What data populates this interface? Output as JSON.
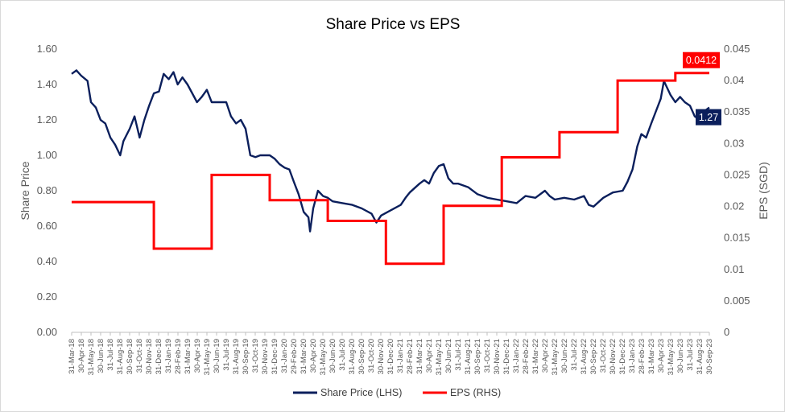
{
  "chart_data": {
    "type": "line",
    "title": "Share Price vs EPS",
    "y_left_label": "Share Price",
    "y_right_label": "EPS (SGD)",
    "y_left_ticks": [
      "0.00",
      "0.20",
      "0.40",
      "0.60",
      "0.80",
      "1.00",
      "1.20",
      "1.40",
      "1.60"
    ],
    "y_right_ticks": [
      "0",
      "0.005",
      "0.01",
      "0.015",
      "0.02",
      "0.025",
      "0.03",
      "0.035",
      "0.04",
      "0.045"
    ],
    "y_left_range": [
      0,
      1.6
    ],
    "y_right_range": [
      0,
      0.045
    ],
    "x_range": [
      "2018-03-31",
      "2023-09-30"
    ],
    "x_ticks": [
      "31-Mar-18",
      "30-Apr-18",
      "31-May-18",
      "30-Jun-18",
      "31-Jul-18",
      "31-Aug-18",
      "30-Sep-18",
      "31-Oct-18",
      "30-Nov-18",
      "31-Dec-18",
      "31-Jan-19",
      "28-Feb-19",
      "31-Mar-19",
      "30-Apr-19",
      "31-May-19",
      "30-Jun-19",
      "31-Jul-19",
      "31-Aug-19",
      "30-Sep-19",
      "31-Oct-19",
      "30-Nov-19",
      "31-Dec-19",
      "31-Jan-20",
      "29-Feb-20",
      "31-Mar-20",
      "30-Apr-20",
      "31-May-20",
      "30-Jun-20",
      "31-Jul-20",
      "31-Aug-20",
      "30-Sep-20",
      "31-Oct-20",
      "30-Nov-20",
      "31-Dec-20",
      "31-Jan-21",
      "28-Feb-21",
      "31-Mar-21",
      "30-Apr-21",
      "31-May-21",
      "30-Jun-21",
      "31-Jul-21",
      "31-Aug-21",
      "30-Sep-21",
      "31-Oct-21",
      "30-Nov-21",
      "31-Dec-21",
      "31-Jan-22",
      "28-Feb-22",
      "31-Mar-22",
      "30-Apr-22",
      "31-May-22",
      "30-Jun-22",
      "31-Jul-22",
      "31-Aug-22",
      "30-Sep-22",
      "31-Oct-22",
      "30-Nov-22",
      "31-Dec-22",
      "31-Jan-23",
      "28-Feb-23",
      "31-Mar-23",
      "30-Apr-23",
      "31-May-23",
      "30-Jun-23",
      "31-Jul-23",
      "31-Aug-23",
      "30-Sep-23"
    ],
    "series": [
      {
        "name": "Share Price (LHS)",
        "axis": "left",
        "color": "#0b1f5c",
        "points": [
          [
            "2018-03-31",
            1.46
          ],
          [
            "2018-04-15",
            1.48
          ],
          [
            "2018-04-30",
            1.45
          ],
          [
            "2018-05-20",
            1.42
          ],
          [
            "2018-05-31",
            1.3
          ],
          [
            "2018-06-15",
            1.27
          ],
          [
            "2018-06-30",
            1.2
          ],
          [
            "2018-07-15",
            1.18
          ],
          [
            "2018-07-31",
            1.1
          ],
          [
            "2018-08-15",
            1.06
          ],
          [
            "2018-08-31",
            1.0
          ],
          [
            "2018-09-10",
            1.08
          ],
          [
            "2018-09-30",
            1.15
          ],
          [
            "2018-10-15",
            1.22
          ],
          [
            "2018-10-31",
            1.1
          ],
          [
            "2018-11-15",
            1.2
          ],
          [
            "2018-11-30",
            1.28
          ],
          [
            "2018-12-15",
            1.35
          ],
          [
            "2018-12-31",
            1.36
          ],
          [
            "2019-01-15",
            1.46
          ],
          [
            "2019-01-31",
            1.43
          ],
          [
            "2019-02-15",
            1.47
          ],
          [
            "2019-02-28",
            1.4
          ],
          [
            "2019-03-15",
            1.44
          ],
          [
            "2019-03-31",
            1.4
          ],
          [
            "2019-04-15",
            1.35
          ],
          [
            "2019-04-30",
            1.3
          ],
          [
            "2019-05-15",
            1.33
          ],
          [
            "2019-05-31",
            1.37
          ],
          [
            "2019-06-15",
            1.3
          ],
          [
            "2019-07-31",
            1.3
          ],
          [
            "2019-08-15",
            1.22
          ],
          [
            "2019-08-31",
            1.18
          ],
          [
            "2019-09-15",
            1.2
          ],
          [
            "2019-09-30",
            1.15
          ],
          [
            "2019-10-15",
            1.0
          ],
          [
            "2019-10-31",
            0.99
          ],
          [
            "2019-11-15",
            1.0
          ],
          [
            "2019-11-30",
            1.0
          ],
          [
            "2019-12-15",
            1.0
          ],
          [
            "2019-12-31",
            0.98
          ],
          [
            "2020-01-15",
            0.95
          ],
          [
            "2020-01-31",
            0.93
          ],
          [
            "2020-02-15",
            0.92
          ],
          [
            "2020-02-29",
            0.85
          ],
          [
            "2020-03-15",
            0.78
          ],
          [
            "2020-03-31",
            0.68
          ],
          [
            "2020-04-15",
            0.65
          ],
          [
            "2020-04-20",
            0.57
          ],
          [
            "2020-04-30",
            0.7
          ],
          [
            "2020-05-15",
            0.8
          ],
          [
            "2020-05-31",
            0.77
          ],
          [
            "2020-06-15",
            0.76
          ],
          [
            "2020-06-30",
            0.74
          ],
          [
            "2020-07-31",
            0.73
          ],
          [
            "2020-08-31",
            0.72
          ],
          [
            "2020-09-30",
            0.7
          ],
          [
            "2020-10-31",
            0.67
          ],
          [
            "2020-11-15",
            0.62
          ],
          [
            "2020-11-30",
            0.66
          ],
          [
            "2020-12-31",
            0.69
          ],
          [
            "2021-01-31",
            0.72
          ],
          [
            "2021-02-15",
            0.76
          ],
          [
            "2021-02-28",
            0.79
          ],
          [
            "2021-03-31",
            0.84
          ],
          [
            "2021-04-15",
            0.86
          ],
          [
            "2021-04-30",
            0.84
          ],
          [
            "2021-05-15",
            0.9
          ],
          [
            "2021-05-31",
            0.94
          ],
          [
            "2021-06-15",
            0.95
          ],
          [
            "2021-06-30",
            0.87
          ],
          [
            "2021-07-15",
            0.84
          ],
          [
            "2021-07-31",
            0.84
          ],
          [
            "2021-08-31",
            0.82
          ],
          [
            "2021-09-30",
            0.78
          ],
          [
            "2021-10-31",
            0.76
          ],
          [
            "2021-11-30",
            0.75
          ],
          [
            "2021-12-31",
            0.74
          ],
          [
            "2022-01-31",
            0.73
          ],
          [
            "2022-02-28",
            0.77
          ],
          [
            "2022-03-31",
            0.76
          ],
          [
            "2022-04-30",
            0.8
          ],
          [
            "2022-05-15",
            0.77
          ],
          [
            "2022-05-31",
            0.75
          ],
          [
            "2022-06-30",
            0.76
          ],
          [
            "2022-07-31",
            0.75
          ],
          [
            "2022-08-31",
            0.77
          ],
          [
            "2022-09-15",
            0.72
          ],
          [
            "2022-09-30",
            0.71
          ],
          [
            "2022-10-31",
            0.76
          ],
          [
            "2022-11-30",
            0.79
          ],
          [
            "2022-12-31",
            0.8
          ],
          [
            "2023-01-15",
            0.85
          ],
          [
            "2023-01-31",
            0.92
          ],
          [
            "2023-02-15",
            1.05
          ],
          [
            "2023-02-28",
            1.12
          ],
          [
            "2023-03-15",
            1.1
          ],
          [
            "2023-03-31",
            1.18
          ],
          [
            "2023-04-15",
            1.25
          ],
          [
            "2023-04-30",
            1.32
          ],
          [
            "2023-05-10",
            1.42
          ],
          [
            "2023-05-31",
            1.34
          ],
          [
            "2023-06-15",
            1.3
          ],
          [
            "2023-06-30",
            1.33
          ],
          [
            "2023-07-15",
            1.3
          ],
          [
            "2023-07-31",
            1.28
          ],
          [
            "2023-08-15",
            1.22
          ],
          [
            "2023-08-31",
            1.2
          ],
          [
            "2023-09-15",
            1.25
          ],
          [
            "2023-09-30",
            1.27
          ]
        ]
      },
      {
        "name": "EPS (RHS)",
        "axis": "right",
        "color": "#ff0000",
        "step": true,
        "points": [
          [
            "2018-03-31",
            0.0207
          ],
          [
            "2018-12-15",
            0.0207
          ],
          [
            "2018-12-15",
            0.0133
          ],
          [
            "2019-06-15",
            0.0133
          ],
          [
            "2019-06-15",
            0.025
          ],
          [
            "2019-12-15",
            0.025
          ],
          [
            "2019-12-15",
            0.021
          ],
          [
            "2020-06-15",
            0.021
          ],
          [
            "2020-06-15",
            0.0177
          ],
          [
            "2020-12-15",
            0.0177
          ],
          [
            "2020-12-15",
            0.0109
          ],
          [
            "2021-06-15",
            0.0109
          ],
          [
            "2021-06-15",
            0.0201
          ],
          [
            "2021-12-15",
            0.0201
          ],
          [
            "2021-12-15",
            0.0278
          ],
          [
            "2022-06-15",
            0.0278
          ],
          [
            "2022-06-15",
            0.0318
          ],
          [
            "2022-12-15",
            0.0318
          ],
          [
            "2022-12-15",
            0.04
          ],
          [
            "2023-06-15",
            0.04
          ],
          [
            "2023-06-15",
            0.0412
          ],
          [
            "2023-09-30",
            0.0412
          ]
        ]
      }
    ],
    "callouts": {
      "eps_last": "0.0412",
      "price_last": "1.27"
    },
    "legend_position": "bottom",
    "grid": false
  }
}
